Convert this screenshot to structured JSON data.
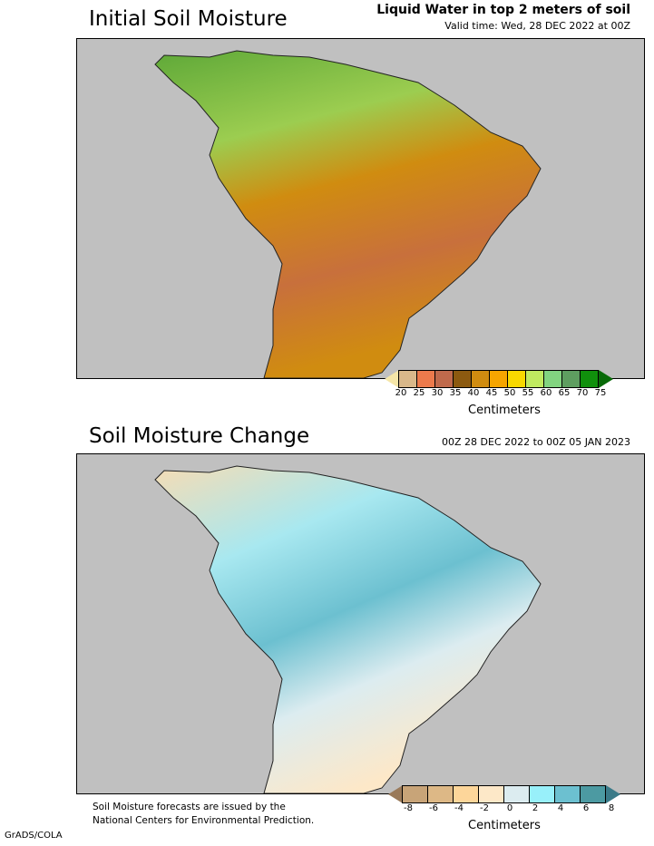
{
  "top": {
    "title": "Initial Soil Moisture",
    "subtitle1": "Liquid Water in top 2 meters of soil",
    "subtitle2": "Valid time: Wed, 28 DEC 2022 at 00Z",
    "colorbar": {
      "colors": [
        "#f5e6a8",
        "#d9b88a",
        "#ec7a4c",
        "#c06a4c",
        "#8c5a10",
        "#d08c10",
        "#f6a500",
        "#f8d800",
        "#c0ea60",
        "#82d480",
        "#5e9e60",
        "#10900c",
        "#086a08"
      ],
      "ticks": [
        "20",
        "25",
        "30",
        "35",
        "40",
        "45",
        "50",
        "55",
        "60",
        "65",
        "70",
        "75"
      ],
      "unit": "Centimeters"
    }
  },
  "bottom": {
    "title": "Soil Moisture Change",
    "subtitle": "00Z 28 DEC 2022 to 00Z 05 JAN 2023",
    "colorbar": {
      "colors": [
        "#9a7a5a",
        "#c8a478",
        "#ddb886",
        "#fdd69a",
        "#fde8c8",
        "#dcecf0",
        "#98f0fa",
        "#6cc0d0",
        "#4c9aa2",
        "#3a7a88"
      ],
      "ticks": [
        "-8",
        "-6",
        "-4",
        "-2",
        "0",
        "2",
        "4",
        "6",
        "8"
      ],
      "unit": "Centimeters"
    }
  },
  "footnote": [
    "Soil Moisture forecasts are issued by the",
    "National Centers for Environmental Prediction."
  ],
  "credit": "GrADS/COLA"
}
